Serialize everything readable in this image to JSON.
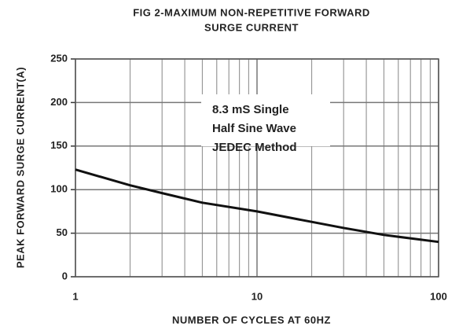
{
  "chart_data": {
    "type": "line",
    "title": [
      "FIG 2-MAXIMUM NON-REPETITIVE FORWARD",
      "SURGE CURRENT"
    ],
    "x_label": "NUMBER OF CYCLES AT 60HZ",
    "y_label": "PEAK FORWARD SURGE CURRENT(A)",
    "annotation": [
      "8.3 mS Single",
      "Half Sine Wave",
      "JEDEC Method"
    ],
    "x": [
      1,
      2,
      3,
      5,
      10,
      20,
      30,
      50,
      100
    ],
    "series": [
      {
        "color": "#111111",
        "values": [
          123,
          105,
          96,
          85,
          75,
          63,
          56,
          48,
          40
        ]
      }
    ],
    "xscale": "log",
    "xlim": [
      1,
      100
    ],
    "xticks": [
      1,
      10,
      100
    ],
    "xminorticks": [
      2,
      3,
      4,
      5,
      6,
      7,
      8,
      9,
      20,
      30,
      40,
      50,
      60,
      70,
      80,
      90
    ],
    "ylim": [
      0,
      250
    ],
    "yticks": [
      0,
      50,
      100,
      150,
      200,
      250
    ],
    "grid": true
  }
}
